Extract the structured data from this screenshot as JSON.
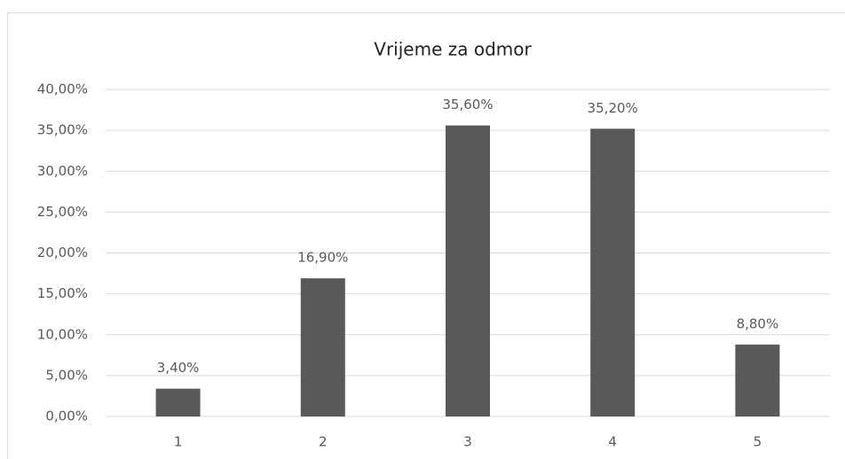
{
  "chart_data": {
    "type": "bar",
    "title": "Vrijeme za odmor",
    "categories": [
      "1",
      "2",
      "3",
      "4",
      "5"
    ],
    "values": [
      3.4,
      16.9,
      35.6,
      35.2,
      8.8
    ],
    "value_labels": [
      "3,40%",
      "16,90%",
      "35,60%",
      "35,20%",
      "8,80%"
    ],
    "color": "#595959",
    "ylim": [
      0,
      40
    ],
    "yticks": [
      {
        "value": 0,
        "label": "0,00%"
      },
      {
        "value": 5,
        "label": "5,00%"
      },
      {
        "value": 10,
        "label": "10,00%"
      },
      {
        "value": 15,
        "label": "15,00%"
      },
      {
        "value": 20,
        "label": "20,00%"
      },
      {
        "value": 25,
        "label": "25,00%"
      },
      {
        "value": 30,
        "label": "30,00%"
      },
      {
        "value": 35,
        "label": "35,00%"
      },
      {
        "value": 40,
        "label": "40,00%"
      }
    ],
    "grid": true
  }
}
